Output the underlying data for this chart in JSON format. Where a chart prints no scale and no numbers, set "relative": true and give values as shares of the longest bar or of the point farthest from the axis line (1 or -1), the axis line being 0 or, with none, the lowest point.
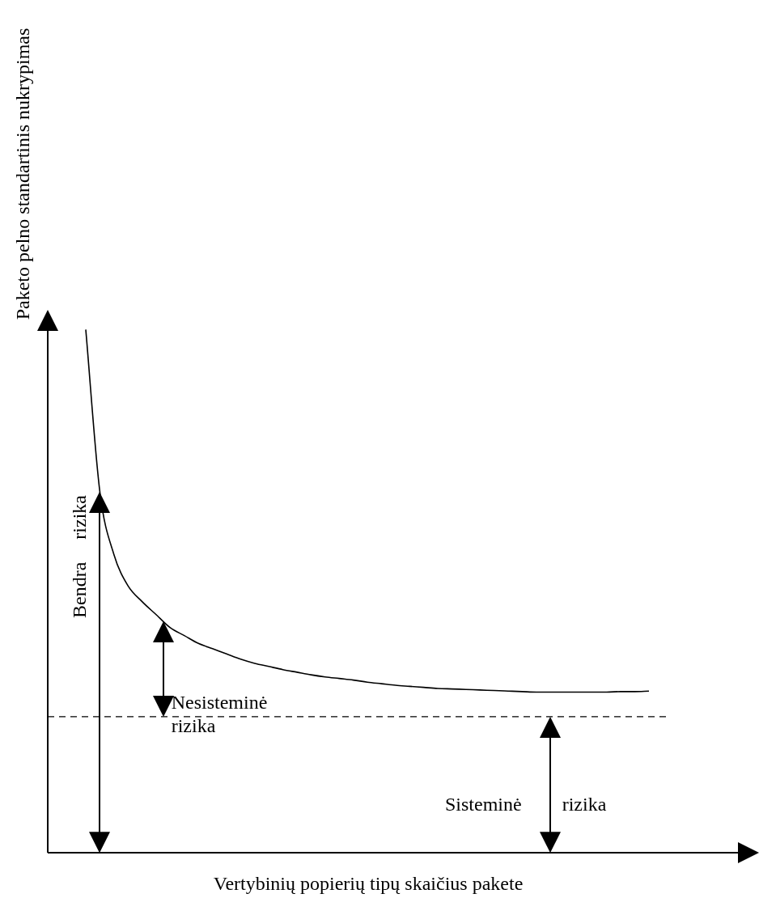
{
  "chart_data": {
    "type": "line",
    "relative": true,
    "xlabel": "Vertybinių popierių tipų skaičius pakete",
    "ylabel": "Paketo pelno standartinis nukrypimas",
    "categories": [
      null,
      null,
      null,
      null,
      null,
      null,
      null,
      null,
      null,
      null,
      null,
      null,
      null,
      null,
      null,
      null,
      null,
      null,
      null,
      null,
      null,
      null,
      null,
      null,
      null,
      null,
      null,
      null,
      null,
      null,
      null,
      null,
      null,
      null,
      null,
      null,
      null,
      null,
      null,
      null,
      null
    ],
    "series": [
      {
        "color": "#000000",
        "values": [
          1.0,
          0.69,
          0.57,
          0.51,
          0.48,
          0.455,
          0.43,
          0.415,
          0.4,
          0.39,
          0.38,
          0.37,
          0.362,
          0.356,
          0.35,
          0.345,
          0.34,
          0.336,
          0.333,
          0.33,
          0.326,
          0.323,
          0.32,
          0.318,
          0.316,
          0.314,
          0.313,
          0.312,
          0.311,
          0.31,
          0.309,
          0.308,
          0.307,
          0.307,
          0.307,
          0.307,
          0.307,
          0.307,
          0.308,
          0.308,
          0.309
        ]
      }
    ],
    "ref_lines": [
      {
        "axis": "y",
        "value": 0.26,
        "color": "#000000",
        "line_style": "dashed"
      }
    ],
    "annotations": [
      "Bendra rizika",
      "Nesisteminė rizika",
      "Sisteminė rizika"
    ],
    "marker": "none",
    "line_style": "solid",
    "legend": false
  }
}
